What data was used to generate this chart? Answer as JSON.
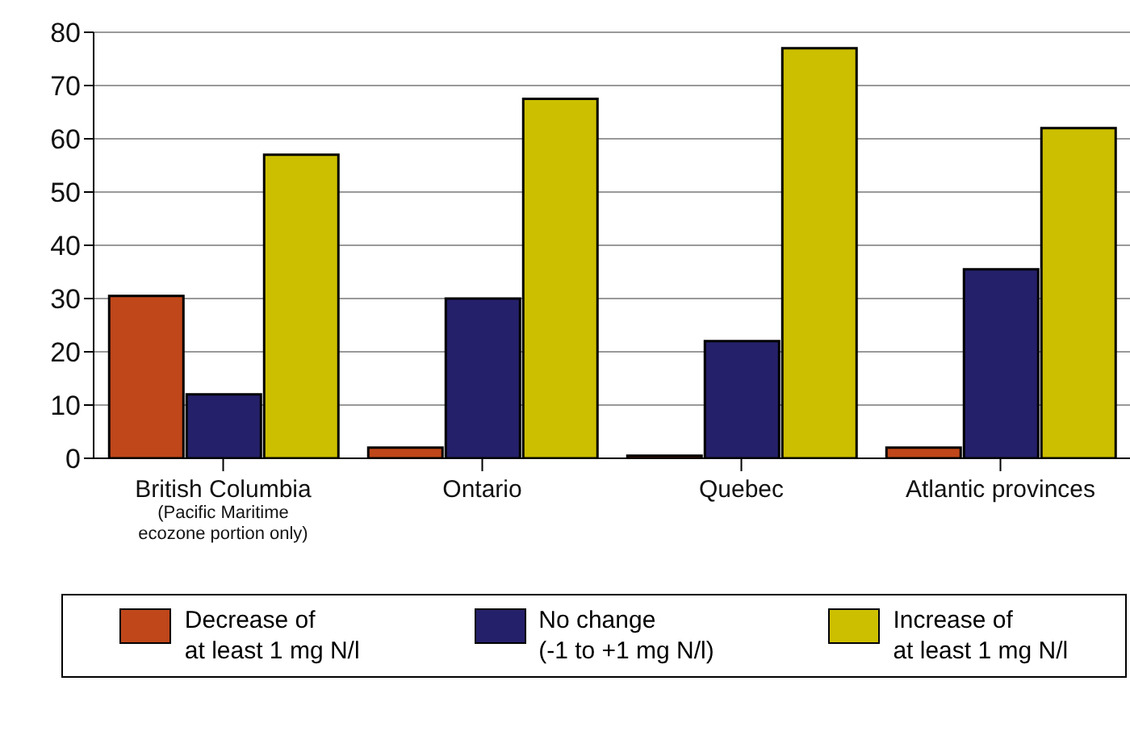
{
  "chart_data": {
    "type": "bar",
    "categories": [
      "British Columbia\n(Pacific Maritime\necozone portion only)",
      "Ontario",
      "Quebec",
      "Atlantic provinces"
    ],
    "series": [
      {
        "name": "Decrease of\nat least 1 mg N/l",
        "color": "#c0471a",
        "values": [
          30.5,
          2,
          0.5,
          2
        ]
      },
      {
        "name": "No change\n(-1 to +1 mg N/l)",
        "color": "#25206a",
        "values": [
          12,
          30,
          22,
          35.5
        ]
      },
      {
        "name": "Increase of\nat least 1 mg N/l",
        "color": "#ccbf00",
        "values": [
          57,
          67.5,
          77,
          62
        ]
      }
    ],
    "ylim": [
      0,
      80
    ],
    "yticks": [
      0,
      10,
      20,
      30,
      40,
      50,
      60,
      70,
      80
    ],
    "grid": "y",
    "legend": "bottom"
  }
}
